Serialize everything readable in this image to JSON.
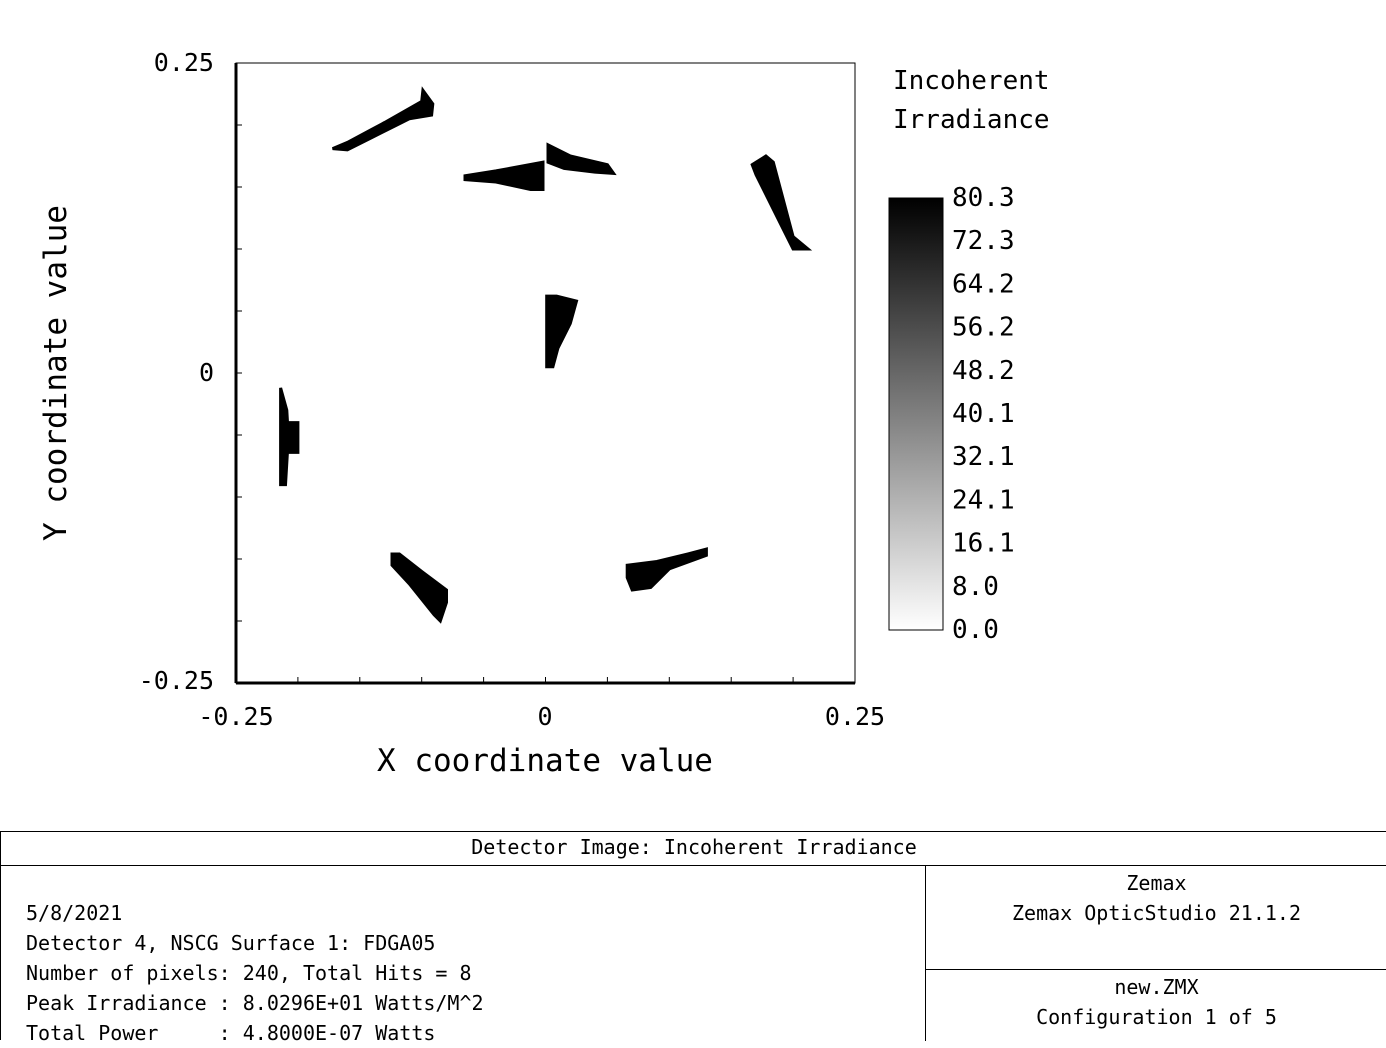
{
  "chart_data": {
    "type": "heatmap",
    "xlabel": "X coordinate value",
    "ylabel": "Y coordinate value",
    "xlim": [
      -0.25,
      0.25
    ],
    "ylim": [
      -0.25,
      0.25
    ],
    "xticks": [
      "-0.25",
      "0",
      "0.25"
    ],
    "yticks": [
      "0.25",
      "0",
      "-0.25"
    ],
    "colorbar_title": [
      "Incoherent",
      "Irradiance"
    ],
    "colorbar_ticks": [
      "80.3",
      "72.3",
      "64.2",
      "56.2",
      "48.2",
      "40.1",
      "32.1",
      "24.1",
      "16.1",
      "8.0",
      "0.0"
    ],
    "colorbar_range": [
      0.0,
      80.3
    ],
    "colormap": "white-to-black",
    "grid": false,
    "spots": [
      {
        "name": "top-left",
        "value": 80.3,
        "poly": [
          [
            -0.172,
            0.181
          ],
          [
            -0.16,
            0.186
          ],
          [
            -0.13,
            0.202
          ],
          [
            -0.1,
            0.219
          ],
          [
            -0.099,
            0.228
          ],
          [
            -0.091,
            0.217
          ],
          [
            -0.092,
            0.208
          ],
          [
            -0.11,
            0.205
          ],
          [
            -0.14,
            0.19
          ],
          [
            -0.16,
            0.18
          ]
        ]
      },
      {
        "name": "top-center-wedge",
        "value": 80.3,
        "poly": [
          [
            -0.065,
            0.156
          ],
          [
            -0.04,
            0.154
          ],
          [
            -0.012,
            0.148
          ],
          [
            -0.002,
            0.148
          ],
          [
            -0.002,
            0.17
          ],
          [
            -0.04,
            0.163
          ],
          [
            -0.065,
            0.159
          ]
        ]
      },
      {
        "name": "top-center-arm",
        "value": 80.3,
        "poly": [
          [
            0.002,
            0.184
          ],
          [
            0.02,
            0.175
          ],
          [
            0.05,
            0.168
          ],
          [
            0.055,
            0.161
          ],
          [
            0.04,
            0.162
          ],
          [
            0.015,
            0.165
          ],
          [
            0.002,
            0.17
          ]
        ]
      },
      {
        "name": "top-right",
        "value": 80.3,
        "poly": [
          [
            0.167,
            0.168
          ],
          [
            0.178,
            0.175
          ],
          [
            0.184,
            0.17
          ],
          [
            0.2,
            0.11
          ],
          [
            0.212,
            0.1
          ],
          [
            0.2,
            0.1
          ],
          [
            0.19,
            0.12
          ],
          [
            0.17,
            0.16
          ]
        ]
      },
      {
        "name": "center",
        "value": 80.3,
        "poly": [
          [
            0.001,
            0.062
          ],
          [
            0.009,
            0.062
          ],
          [
            0.025,
            0.058
          ],
          [
            0.02,
            0.04
          ],
          [
            0.01,
            0.02
          ],
          [
            0.006,
            0.005
          ],
          [
            0.001,
            0.005
          ]
        ]
      },
      {
        "name": "left",
        "value": 80.3,
        "poly": [
          [
            -0.214,
            -0.012
          ],
          [
            -0.209,
            -0.03
          ],
          [
            -0.207,
            -0.064
          ],
          [
            -0.2,
            -0.064
          ],
          [
            -0.2,
            -0.04
          ],
          [
            -0.207,
            -0.04
          ],
          [
            -0.21,
            -0.09
          ],
          [
            -0.214,
            -0.09
          ]
        ]
      },
      {
        "name": "bottom-left",
        "value": 80.3,
        "poly": [
          [
            -0.124,
            -0.146
          ],
          [
            -0.118,
            -0.146
          ],
          [
            -0.1,
            -0.16
          ],
          [
            -0.08,
            -0.175
          ],
          [
            -0.08,
            -0.185
          ],
          [
            -0.085,
            -0.2
          ],
          [
            -0.09,
            -0.195
          ],
          [
            -0.11,
            -0.17
          ],
          [
            -0.124,
            -0.155
          ]
        ]
      },
      {
        "name": "bottom-right",
        "value": 80.3,
        "poly": [
          [
            0.066,
            -0.155
          ],
          [
            0.09,
            -0.152
          ],
          [
            0.115,
            -0.146
          ],
          [
            0.13,
            -0.142
          ],
          [
            0.13,
            -0.147
          ],
          [
            0.1,
            -0.158
          ],
          [
            0.085,
            -0.173
          ],
          [
            0.07,
            -0.175
          ],
          [
            0.066,
            -0.165
          ]
        ]
      }
    ]
  },
  "info": {
    "title": "Detector Image: Incoherent Irradiance",
    "date": "5/8/2021",
    "detector": "Detector 4, NSCG Surface 1: FDGA05",
    "pixels": "Number of pixels: 240, Total Hits = 8",
    "peak": "Peak Irradiance : 8.0296E+01 Watts/M^2",
    "power": "Total Power     : 4.8000E-07 Watts",
    "company": "Zemax",
    "product": "Zemax OpticStudio 21.1.2",
    "file": "new.ZMX",
    "config": "Configuration 1 of 5"
  }
}
